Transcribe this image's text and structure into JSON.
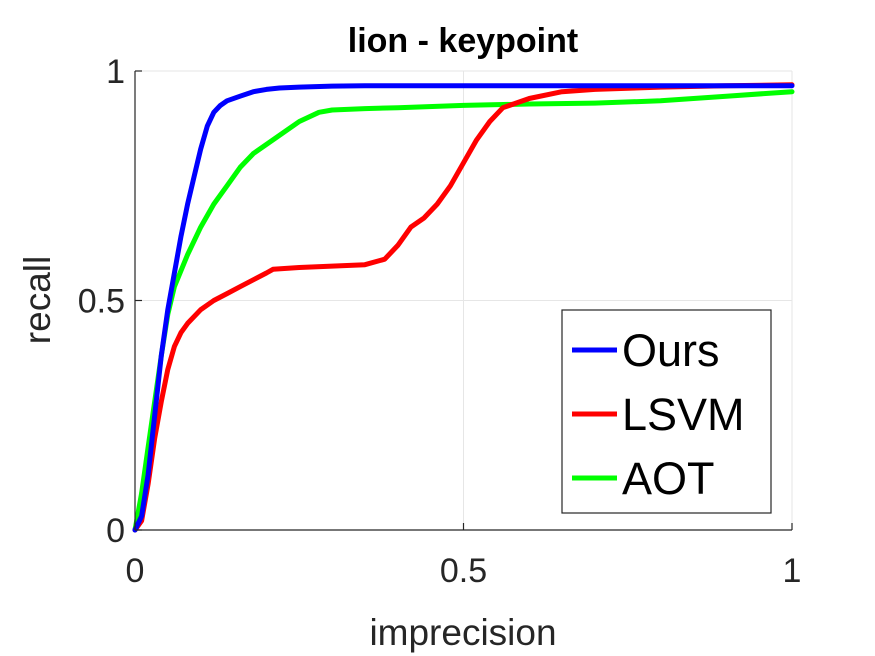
{
  "chart_data": {
    "type": "line",
    "title": "lion - keypoint",
    "xlabel": "imprecision",
    "ylabel": "recall",
    "xlim": [
      0,
      1
    ],
    "ylim": [
      0,
      1
    ],
    "xticks": [
      0,
      0.5,
      1
    ],
    "xtick_labels": [
      "0",
      "0.5",
      "1"
    ],
    "yticks": [
      0,
      0.5,
      1
    ],
    "ytick_labels": [
      "0",
      "0.5",
      "1"
    ],
    "grid": true,
    "legend_position": "bottom-right",
    "series": [
      {
        "name": "Ours",
        "color": "#0000ff",
        "x": [
          0,
          0.01,
          0.02,
          0.03,
          0.04,
          0.05,
          0.06,
          0.07,
          0.08,
          0.09,
          0.1,
          0.11,
          0.12,
          0.13,
          0.14,
          0.16,
          0.18,
          0.2,
          0.22,
          0.25,
          0.3,
          0.35,
          0.5,
          0.7,
          1.0
        ],
        "y": [
          0,
          0.03,
          0.12,
          0.25,
          0.38,
          0.48,
          0.56,
          0.64,
          0.71,
          0.77,
          0.83,
          0.88,
          0.91,
          0.925,
          0.935,
          0.945,
          0.955,
          0.96,
          0.963,
          0.965,
          0.967,
          0.968,
          0.968,
          0.968,
          0.968
        ]
      },
      {
        "name": "LSVM",
        "color": "#ff0000",
        "x": [
          0,
          0.01,
          0.02,
          0.03,
          0.04,
          0.05,
          0.06,
          0.07,
          0.08,
          0.1,
          0.12,
          0.14,
          0.16,
          0.18,
          0.2,
          0.21,
          0.25,
          0.3,
          0.35,
          0.38,
          0.4,
          0.42,
          0.44,
          0.46,
          0.48,
          0.5,
          0.52,
          0.54,
          0.56,
          0.6,
          0.65,
          0.7,
          0.8,
          0.9,
          1.0
        ],
        "y": [
          0,
          0.02,
          0.1,
          0.2,
          0.28,
          0.35,
          0.4,
          0.43,
          0.45,
          0.48,
          0.5,
          0.515,
          0.53,
          0.545,
          0.56,
          0.568,
          0.572,
          0.575,
          0.578,
          0.59,
          0.62,
          0.66,
          0.68,
          0.71,
          0.75,
          0.8,
          0.85,
          0.89,
          0.92,
          0.94,
          0.955,
          0.96,
          0.965,
          0.968,
          0.97
        ]
      },
      {
        "name": "AOT",
        "color": "#00ff00",
        "x": [
          0,
          0.01,
          0.02,
          0.03,
          0.04,
          0.05,
          0.06,
          0.08,
          0.1,
          0.12,
          0.14,
          0.16,
          0.18,
          0.2,
          0.22,
          0.25,
          0.28,
          0.3,
          0.35,
          0.4,
          0.5,
          0.6,
          0.7,
          0.8,
          0.9,
          1.0
        ],
        "y": [
          0,
          0.08,
          0.18,
          0.28,
          0.38,
          0.47,
          0.53,
          0.6,
          0.66,
          0.71,
          0.75,
          0.79,
          0.82,
          0.84,
          0.86,
          0.89,
          0.91,
          0.915,
          0.918,
          0.92,
          0.925,
          0.928,
          0.93,
          0.935,
          0.945,
          0.955
        ]
      }
    ]
  }
}
